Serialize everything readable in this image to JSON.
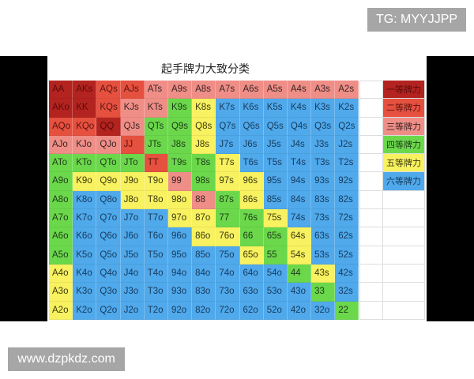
{
  "watermark_top": "TG: MYYJJPP",
  "watermark_bottom": "www.dzpkdz.com",
  "chart": {
    "title": "起手牌力大致分类",
    "tier_colors": {
      "1": "#b3231f",
      "2": "#e6503f",
      "3": "#ef8e87",
      "4": "#6bd84b",
      "5": "#f8f160",
      "6": "#4fa9eb"
    },
    "rows": [
      {
        "labels": [
          "AA",
          "AKs",
          "AQs",
          "AJs",
          "ATs",
          "A9s",
          "A8s",
          "A7s",
          "A6s",
          "A5s",
          "A4s",
          "A3s",
          "A2s"
        ],
        "tiers": [
          1,
          1,
          2,
          2,
          3,
          3,
          3,
          3,
          3,
          3,
          3,
          3,
          3
        ]
      },
      {
        "labels": [
          "AKo",
          "KK",
          "KQs",
          "KJs",
          "KTs",
          "K9s",
          "K8s",
          "K7s",
          "K6s",
          "K5s",
          "K4s",
          "K3s",
          "K2s"
        ],
        "tiers": [
          1,
          1,
          2,
          3,
          3,
          4,
          5,
          6,
          6,
          6,
          6,
          6,
          6
        ]
      },
      {
        "labels": [
          "AQo",
          "KQo",
          "QQ",
          "QJs",
          "QTs",
          "Q9s",
          "Q8s",
          "Q7s",
          "Q6s",
          "Q5s",
          "Q4s",
          "Q3s",
          "Q2s"
        ],
        "tiers": [
          2,
          2,
          1,
          3,
          4,
          4,
          5,
          6,
          6,
          6,
          6,
          6,
          6
        ]
      },
      {
        "labels": [
          "AJo",
          "KJo",
          "QJo",
          "JJ",
          "JTs",
          "J8s",
          "J8s",
          "J7s",
          "J6s",
          "J5s",
          "J4s",
          "J3s",
          "J2s"
        ],
        "tiers": [
          3,
          3,
          3,
          2,
          4,
          4,
          5,
          6,
          6,
          6,
          6,
          6,
          6
        ]
      },
      {
        "labels": [
          "ATo",
          "KTo",
          "QTo",
          "JTo",
          "TT",
          "T9s",
          "T8s",
          "T7s",
          "T6s",
          "T5s",
          "T4s",
          "T3s",
          "T2s"
        ],
        "tiers": [
          4,
          4,
          4,
          4,
          2,
          4,
          4,
          5,
          6,
          6,
          6,
          6,
          6
        ]
      },
      {
        "labels": [
          "A9o",
          "K9o",
          "Q9o",
          "J9o",
          "T9o",
          "99",
          "98s",
          "97s",
          "96s",
          "95s",
          "94s",
          "93s",
          "92s"
        ],
        "tiers": [
          4,
          5,
          5,
          5,
          5,
          3,
          4,
          5,
          5,
          6,
          6,
          6,
          6
        ]
      },
      {
        "labels": [
          "A8o",
          "K8o",
          "Q8o",
          "J8o",
          "T8o",
          "98o",
          "88",
          "87s",
          "86s",
          "85s",
          "84s",
          "83s",
          "82s"
        ],
        "tiers": [
          4,
          6,
          6,
          5,
          5,
          5,
          3,
          4,
          5,
          6,
          6,
          6,
          6
        ]
      },
      {
        "labels": [
          "A7o",
          "K7o",
          "Q7o",
          "J7o",
          "T7o",
          "97o",
          "87o",
          "77",
          "76s",
          "75s",
          "74s",
          "73s",
          "72s"
        ],
        "tiers": [
          4,
          6,
          6,
          6,
          6,
          5,
          5,
          4,
          4,
          5,
          6,
          6,
          6
        ]
      },
      {
        "labels": [
          "A6o",
          "K6o",
          "Q6o",
          "J6o",
          "T6o",
          "96o",
          "86o",
          "76o",
          "66",
          "65s",
          "64s",
          "63s",
          "62s"
        ],
        "tiers": [
          4,
          6,
          6,
          6,
          6,
          6,
          5,
          5,
          4,
          4,
          5,
          6,
          6
        ]
      },
      {
        "labels": [
          "A5o",
          "K5o",
          "Q5o",
          "J5o",
          "T5o",
          "95o",
          "85o",
          "75o",
          "65o",
          "55",
          "54s",
          "53s",
          "52s"
        ],
        "tiers": [
          4,
          6,
          6,
          6,
          6,
          6,
          6,
          6,
          5,
          4,
          5,
          6,
          6
        ]
      },
      {
        "labels": [
          "A4o",
          "K4o",
          "Q4o",
          "J4o",
          "T4o",
          "94o",
          "84o",
          "74o",
          "64o",
          "54o",
          "44",
          "43s",
          "42s"
        ],
        "tiers": [
          5,
          6,
          6,
          6,
          6,
          6,
          6,
          6,
          6,
          6,
          4,
          5,
          6
        ]
      },
      {
        "labels": [
          "A3o",
          "K3o",
          "Q3o",
          "J3o",
          "T3o",
          "93o",
          "83o",
          "73o",
          "63o",
          "53o",
          "43o",
          "33",
          "32s"
        ],
        "tiers": [
          5,
          6,
          6,
          6,
          6,
          6,
          6,
          6,
          6,
          6,
          6,
          4,
          6
        ]
      },
      {
        "labels": [
          "A2o",
          "K2o",
          "Q2o",
          "J2o",
          "T2o",
          "92o",
          "82o",
          "72o",
          "62o",
          "52o",
          "42o",
          "32o",
          "22"
        ],
        "tiers": [
          5,
          6,
          6,
          6,
          6,
          6,
          6,
          6,
          6,
          6,
          6,
          6,
          4
        ]
      }
    ],
    "legend": [
      {
        "label": "一等牌力",
        "tier": 1
      },
      {
        "label": "二等牌力",
        "tier": 2
      },
      {
        "label": "三等牌力",
        "tier": 3
      },
      {
        "label": "四等牌力",
        "tier": 4
      },
      {
        "label": "五等牌力",
        "tier": 5
      },
      {
        "label": "六等牌力",
        "tier": 6
      }
    ]
  }
}
